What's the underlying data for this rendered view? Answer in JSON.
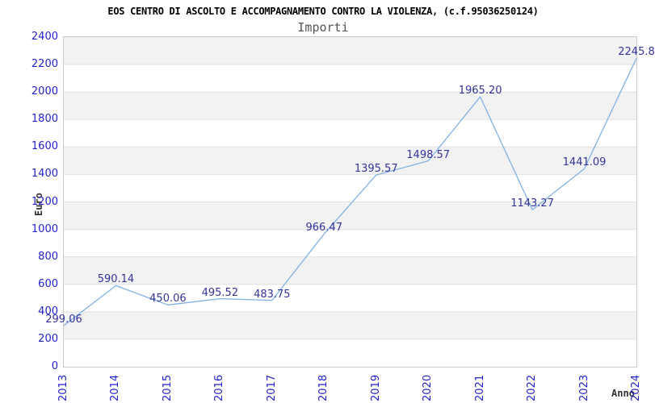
{
  "chart_data": {
    "type": "line",
    "title": "EOS CENTRO DI ASCOLTO E ACCOMPAGNAMENTO CONTRO LA VIOLENZA, (c.f.95036250124)",
    "subtitle": "Importi",
    "xlabel": "Anno",
    "ylabel": "Euro",
    "x": [
      2013,
      2014,
      2015,
      2016,
      2017,
      2018,
      2019,
      2020,
      2021,
      2022,
      2023,
      2024
    ],
    "values": [
      299.06,
      590.14,
      450.06,
      495.52,
      483.75,
      966.47,
      1395.57,
      1498.57,
      1965.2,
      1143.27,
      1441.09,
      2245.8
    ],
    "point_labels": [
      "299.06",
      "590.14",
      "450.06",
      "495.52",
      "483.75",
      "966.47",
      "1395.57",
      "1498.57",
      "1965.20",
      "1143.27",
      "1441.09",
      "2245.8"
    ],
    "ylim": [
      0,
      2400
    ],
    "ytick_step": 200,
    "yticks": [
      0,
      200,
      400,
      600,
      800,
      1000,
      1200,
      1400,
      1600,
      1800,
      2000,
      2200,
      2400
    ],
    "grid": "horizontal-bands-alternating",
    "legend": "none",
    "markers": "none",
    "colors": {
      "line": "#7fb2e5",
      "point_label": "#333399",
      "tick_label": "#2222cc",
      "band": "#f2f2f2",
      "band_alt": "#ffffff",
      "gridline": "#e0e0e0",
      "plot_border": "#cccccc",
      "title": "#000000",
      "subtitle": "#555555",
      "axis_name": "#333333",
      "background": "#ffffff"
    }
  }
}
